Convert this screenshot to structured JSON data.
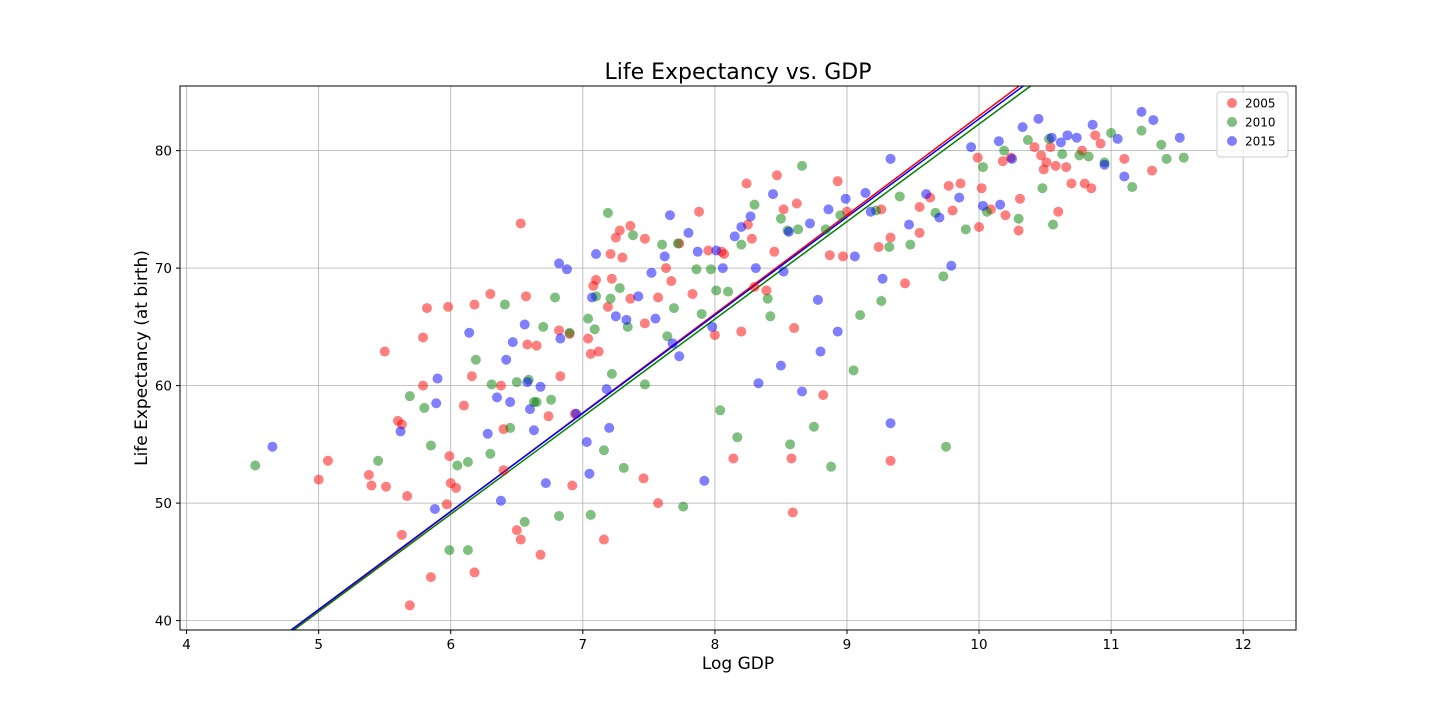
{
  "chart_data": {
    "type": "scatter",
    "title": "Life Expectancy vs. GDP",
    "xlabel": "Log GDP",
    "ylabel": "Life Expectancy (at birth)",
    "xlim": [
      3.95,
      12.4
    ],
    "ylim": [
      39.2,
      85.5
    ],
    "xticks": [
      4,
      5,
      6,
      7,
      8,
      9,
      10,
      11,
      12
    ],
    "yticks": [
      40,
      50,
      60,
      70,
      80
    ],
    "grid": true,
    "legend_position": "top-right",
    "marker_alpha": 0.5,
    "series": [
      {
        "name": "2005",
        "color": "#ff0000",
        "fit_line": {
          "slope": 8.42,
          "intercept": -1.25
        },
        "points": [
          [
            5.0,
            52.0
          ],
          [
            5.07,
            53.6
          ],
          [
            5.38,
            52.4
          ],
          [
            5.4,
            51.5
          ],
          [
            5.51,
            51.4
          ],
          [
            5.5,
            62.9
          ],
          [
            5.6,
            57.0
          ],
          [
            5.63,
            56.7
          ],
          [
            5.63,
            47.3
          ],
          [
            5.67,
            50.6
          ],
          [
            5.69,
            41.3
          ],
          [
            5.79,
            64.1
          ],
          [
            5.79,
            60.0
          ],
          [
            5.82,
            66.6
          ],
          [
            5.85,
            43.7
          ],
          [
            5.97,
            49.9
          ],
          [
            5.98,
            66.7
          ],
          [
            5.99,
            54.0
          ],
          [
            6.0,
            51.7
          ],
          [
            6.04,
            51.3
          ],
          [
            6.1,
            58.3
          ],
          [
            6.16,
            60.8
          ],
          [
            6.18,
            44.1
          ],
          [
            6.18,
            66.9
          ],
          [
            6.3,
            67.8
          ],
          [
            6.38,
            60.0
          ],
          [
            6.4,
            52.8
          ],
          [
            6.4,
            56.3
          ],
          [
            6.5,
            47.7
          ],
          [
            6.53,
            73.8
          ],
          [
            6.53,
            46.9
          ],
          [
            6.57,
            67.6
          ],
          [
            6.58,
            63.5
          ],
          [
            6.65,
            63.4
          ],
          [
            6.68,
            45.6
          ],
          [
            6.74,
            57.4
          ],
          [
            6.82,
            64.7
          ],
          [
            6.83,
            60.8
          ],
          [
            6.9,
            64.4
          ],
          [
            6.92,
            51.5
          ],
          [
            6.94,
            57.6
          ],
          [
            7.04,
            64.0
          ],
          [
            7.06,
            62.7
          ],
          [
            7.08,
            68.5
          ],
          [
            7.1,
            69.0
          ],
          [
            7.12,
            62.9
          ],
          [
            7.16,
            46.9
          ],
          [
            7.19,
            66.7
          ],
          [
            7.21,
            71.2
          ],
          [
            7.22,
            69.1
          ],
          [
            7.25,
            72.6
          ],
          [
            7.28,
            73.2
          ],
          [
            7.3,
            70.9
          ],
          [
            7.36,
            67.4
          ],
          [
            7.36,
            73.6
          ],
          [
            7.47,
            72.5
          ],
          [
            7.46,
            52.1
          ],
          [
            7.47,
            65.3
          ],
          [
            7.57,
            50.0
          ],
          [
            7.57,
            67.5
          ],
          [
            7.63,
            70.0
          ],
          [
            7.67,
            68.9
          ],
          [
            7.73,
            72.1
          ],
          [
            7.83,
            67.8
          ],
          [
            7.88,
            74.8
          ],
          [
            7.95,
            71.5
          ],
          [
            8.0,
            64.3
          ],
          [
            8.05,
            71.4
          ],
          [
            8.07,
            71.2
          ],
          [
            8.14,
            53.8
          ],
          [
            8.2,
            64.6
          ],
          [
            8.24,
            77.2
          ],
          [
            8.25,
            73.7
          ],
          [
            8.28,
            72.5
          ],
          [
            8.3,
            68.4
          ],
          [
            8.39,
            68.1
          ],
          [
            8.45,
            71.4
          ],
          [
            8.47,
            77.9
          ],
          [
            8.52,
            75.0
          ],
          [
            8.58,
            53.8
          ],
          [
            8.59,
            49.2
          ],
          [
            8.6,
            64.9
          ],
          [
            8.62,
            75.5
          ],
          [
            8.82,
            59.2
          ],
          [
            8.87,
            71.1
          ],
          [
            8.93,
            77.4
          ],
          [
            8.97,
            71.0
          ],
          [
            9.0,
            74.8
          ],
          [
            9.24,
            71.8
          ],
          [
            9.26,
            75.0
          ],
          [
            9.33,
            72.6
          ],
          [
            9.33,
            53.6
          ],
          [
            9.44,
            68.7
          ],
          [
            9.55,
            75.2
          ],
          [
            9.55,
            73.0
          ],
          [
            9.63,
            76.0
          ],
          [
            9.77,
            77.0
          ],
          [
            9.8,
            74.9
          ],
          [
            9.86,
            77.2
          ],
          [
            9.99,
            79.4
          ],
          [
            10.0,
            73.5
          ],
          [
            10.02,
            76.8
          ],
          [
            10.09,
            75.0
          ],
          [
            10.18,
            79.1
          ],
          [
            10.2,
            74.5
          ],
          [
            10.24,
            79.4
          ],
          [
            10.3,
            73.2
          ],
          [
            10.31,
            75.9
          ],
          [
            10.42,
            80.3
          ],
          [
            10.47,
            79.6
          ],
          [
            10.49,
            78.4
          ],
          [
            10.51,
            79.0
          ],
          [
            10.54,
            80.3
          ],
          [
            10.58,
            78.7
          ],
          [
            10.6,
            74.8
          ],
          [
            10.66,
            78.6
          ],
          [
            10.7,
            77.2
          ],
          [
            10.78,
            80.0
          ],
          [
            10.8,
            77.2
          ],
          [
            10.85,
            76.8
          ],
          [
            10.88,
            81.3
          ],
          [
            10.92,
            80.6
          ],
          [
            11.1,
            79.3
          ],
          [
            11.31,
            78.3
          ]
        ]
      },
      {
        "name": "2010",
        "color": "#008000",
        "fit_line": {
          "slope": 8.3,
          "intercept": -0.74
        },
        "points": [
          [
            4.52,
            53.2
          ],
          [
            5.45,
            53.6
          ],
          [
            5.69,
            59.1
          ],
          [
            5.8,
            58.1
          ],
          [
            5.85,
            54.9
          ],
          [
            5.99,
            46.0
          ],
          [
            6.05,
            53.2
          ],
          [
            6.13,
            53.5
          ],
          [
            6.13,
            46.0
          ],
          [
            6.19,
            62.2
          ],
          [
            6.3,
            54.2
          ],
          [
            6.31,
            60.1
          ],
          [
            6.41,
            66.9
          ],
          [
            6.45,
            56.4
          ],
          [
            6.5,
            60.3
          ],
          [
            6.56,
            48.4
          ],
          [
            6.59,
            60.5
          ],
          [
            6.63,
            58.6
          ],
          [
            6.65,
            58.6
          ],
          [
            6.7,
            65.0
          ],
          [
            6.76,
            58.8
          ],
          [
            6.79,
            67.5
          ],
          [
            6.82,
            48.9
          ],
          [
            6.9,
            64.5
          ],
          [
            7.04,
            65.7
          ],
          [
            7.06,
            49.0
          ],
          [
            7.09,
            64.8
          ],
          [
            7.1,
            67.6
          ],
          [
            7.16,
            54.5
          ],
          [
            7.19,
            74.7
          ],
          [
            7.21,
            67.4
          ],
          [
            7.22,
            61.0
          ],
          [
            7.28,
            68.3
          ],
          [
            7.31,
            53.0
          ],
          [
            7.34,
            65.0
          ],
          [
            7.38,
            72.8
          ],
          [
            7.47,
            60.1
          ],
          [
            7.6,
            72.0
          ],
          [
            7.64,
            64.2
          ],
          [
            7.69,
            66.6
          ],
          [
            7.72,
            72.1
          ],
          [
            7.76,
            49.7
          ],
          [
            7.86,
            69.9
          ],
          [
            7.9,
            66.1
          ],
          [
            7.97,
            69.9
          ],
          [
            8.01,
            68.1
          ],
          [
            8.04,
            57.9
          ],
          [
            8.1,
            68.0
          ],
          [
            8.17,
            55.6
          ],
          [
            8.2,
            72.0
          ],
          [
            8.3,
            75.4
          ],
          [
            8.4,
            67.4
          ],
          [
            8.42,
            65.9
          ],
          [
            8.5,
            74.2
          ],
          [
            8.55,
            73.2
          ],
          [
            8.57,
            55.0
          ],
          [
            8.63,
            73.3
          ],
          [
            8.66,
            78.7
          ],
          [
            8.75,
            56.5
          ],
          [
            8.84,
            73.3
          ],
          [
            8.88,
            53.1
          ],
          [
            8.95,
            74.5
          ],
          [
            9.05,
            61.3
          ],
          [
            9.1,
            66.0
          ],
          [
            9.22,
            74.9
          ],
          [
            9.26,
            67.2
          ],
          [
            9.32,
            71.8
          ],
          [
            9.4,
            76.1
          ],
          [
            9.48,
            72.0
          ],
          [
            9.67,
            74.7
          ],
          [
            9.73,
            69.3
          ],
          [
            9.75,
            54.8
          ],
          [
            9.9,
            73.3
          ],
          [
            10.03,
            78.6
          ],
          [
            10.06,
            74.8
          ],
          [
            10.19,
            80.0
          ],
          [
            10.3,
            74.2
          ],
          [
            10.37,
            80.9
          ],
          [
            10.48,
            76.8
          ],
          [
            10.53,
            81.0
          ],
          [
            10.56,
            73.7
          ],
          [
            10.63,
            79.7
          ],
          [
            10.76,
            79.6
          ],
          [
            10.83,
            79.5
          ],
          [
            10.95,
            79.0
          ],
          [
            11.0,
            81.5
          ],
          [
            11.16,
            76.9
          ],
          [
            11.23,
            81.7
          ],
          [
            11.38,
            80.5
          ],
          [
            11.42,
            79.3
          ],
          [
            11.55,
            79.4
          ]
        ]
      },
      {
        "name": "2015",
        "color": "#0000ff",
        "fit_line": {
          "slope": 8.35,
          "intercept": -0.8
        },
        "points": [
          [
            4.65,
            54.8
          ],
          [
            5.62,
            56.1
          ],
          [
            5.89,
            58.5
          ],
          [
            5.9,
            60.6
          ],
          [
            5.88,
            49.5
          ],
          [
            6.14,
            64.5
          ],
          [
            6.28,
            55.9
          ],
          [
            6.35,
            59.0
          ],
          [
            6.38,
            50.2
          ],
          [
            6.42,
            62.2
          ],
          [
            6.45,
            58.6
          ],
          [
            6.47,
            63.7
          ],
          [
            6.56,
            65.2
          ],
          [
            6.58,
            60.3
          ],
          [
            6.6,
            58.0
          ],
          [
            6.63,
            56.2
          ],
          [
            6.68,
            59.9
          ],
          [
            6.72,
            51.7
          ],
          [
            6.82,
            70.4
          ],
          [
            6.83,
            64.0
          ],
          [
            6.88,
            69.9
          ],
          [
            6.95,
            57.6
          ],
          [
            7.03,
            55.2
          ],
          [
            7.05,
            52.5
          ],
          [
            7.07,
            67.5
          ],
          [
            7.1,
            71.2
          ],
          [
            7.18,
            59.7
          ],
          [
            7.2,
            56.4
          ],
          [
            7.25,
            65.9
          ],
          [
            7.33,
            65.6
          ],
          [
            7.42,
            67.6
          ],
          [
            7.52,
            69.6
          ],
          [
            7.55,
            65.7
          ],
          [
            7.62,
            71.0
          ],
          [
            7.66,
            74.5
          ],
          [
            7.68,
            63.6
          ],
          [
            7.73,
            62.5
          ],
          [
            7.8,
            73.0
          ],
          [
            7.87,
            71.4
          ],
          [
            7.92,
            51.9
          ],
          [
            7.98,
            65.0
          ],
          [
            8.01,
            71.5
          ],
          [
            8.06,
            70.0
          ],
          [
            8.15,
            72.7
          ],
          [
            8.2,
            73.5
          ],
          [
            8.27,
            74.4
          ],
          [
            8.31,
            70.0
          ],
          [
            8.33,
            60.2
          ],
          [
            8.44,
            76.3
          ],
          [
            8.5,
            61.7
          ],
          [
            8.52,
            69.7
          ],
          [
            8.56,
            73.1
          ],
          [
            8.66,
            59.5
          ],
          [
            8.72,
            73.8
          ],
          [
            8.78,
            67.3
          ],
          [
            8.8,
            62.9
          ],
          [
            8.86,
            75.0
          ],
          [
            8.93,
            64.6
          ],
          [
            8.99,
            75.9
          ],
          [
            9.06,
            71.0
          ],
          [
            9.14,
            76.4
          ],
          [
            9.18,
            74.8
          ],
          [
            9.27,
            69.1
          ],
          [
            9.33,
            56.8
          ],
          [
            9.33,
            79.3
          ],
          [
            9.47,
            73.7
          ],
          [
            9.6,
            76.3
          ],
          [
            9.7,
            74.3
          ],
          [
            9.79,
            70.2
          ],
          [
            9.85,
            76.0
          ],
          [
            9.94,
            80.3
          ],
          [
            10.03,
            75.3
          ],
          [
            10.15,
            80.8
          ],
          [
            10.16,
            75.4
          ],
          [
            10.25,
            79.3
          ],
          [
            10.33,
            82.0
          ],
          [
            10.45,
            82.7
          ],
          [
            10.55,
            81.1
          ],
          [
            10.62,
            80.7
          ],
          [
            10.67,
            81.3
          ],
          [
            10.74,
            81.1
          ],
          [
            10.86,
            82.2
          ],
          [
            10.95,
            78.8
          ],
          [
            11.05,
            81.0
          ],
          [
            11.1,
            77.8
          ],
          [
            11.23,
            83.3
          ],
          [
            11.32,
            82.6
          ],
          [
            11.52,
            81.1
          ]
        ]
      }
    ]
  }
}
